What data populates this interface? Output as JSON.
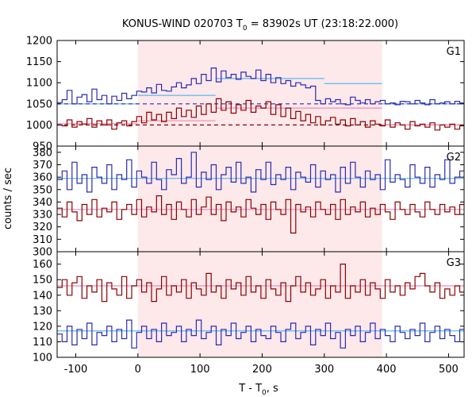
{
  "chart_data": {
    "type": "line",
    "title": "KONUS-WIND 020703 T",
    "title_sub": "0",
    "title_rest": " = 83902s UT (23:18:22.000)",
    "xlabel_main": "T - T",
    "xlabel_sub": "0",
    "xlabel_rest": ", s",
    "ylabel": "counts / sec",
    "xlim": [
      -130,
      525
    ],
    "x_ticks": [
      -100,
      0,
      100,
      200,
      300,
      400,
      500
    ],
    "x_tick_labels": [
      "-100",
      "0",
      "100",
      "200",
      "300",
      "400",
      "500"
    ],
    "shaded_interval": [
      0,
      393
    ],
    "shade_color": "#fde8ea",
    "colors": {
      "blue": "#2b2bb0",
      "red": "#8b0000",
      "lightblue": "#5bb8f0",
      "pink": "#f08ab8"
    },
    "bin_width": 8,
    "panels": [
      {
        "label": "G1",
        "ylim": [
          950,
          1200
        ],
        "y_ticks": [
          950,
          1000,
          1050,
          1100,
          1150,
          1200
        ],
        "y_tick_labels": [
          "950",
          "1000",
          "1050",
          "1100",
          "1150",
          "1200"
        ],
        "series": [
          {
            "color": "blue",
            "values": [
              1053,
              1060,
              1082,
              1050,
              1066,
              1072,
              1055,
              1085,
              1060,
              1070,
              1050,
              1068,
              1058,
              1075,
              1062,
              1070,
              1080,
              1078,
              1088,
              1076,
              1096,
              1082,
              1080,
              1090,
              1100,
              1088,
              1095,
              1110,
              1098,
              1120,
              1105,
              1135,
              1102,
              1128,
              1112,
              1120,
              1108,
              1125,
              1115,
              1110,
              1130,
              1105,
              1120,
              1100,
              1112,
              1098,
              1105,
              1092,
              1100,
              1095,
              1088,
              1092,
              1058,
              1050,
              1062,
              1055,
              1060,
              1050,
              1048,
              1066,
              1058,
              1052,
              1060,
              1050,
              1055,
              1058,
              1050,
              1052,
              1048,
              1056,
              1055,
              1050,
              1058,
              1052,
              1048,
              1060,
              1050,
              1052,
              1055,
              1050,
              1056,
              1052
            ]
          },
          {
            "color": "red",
            "values": [
              1000,
              998,
              1012,
              995,
              1008,
              1002,
              1015,
              995,
              1010,
              1000,
              1012,
              990,
              1005,
              1010,
              998,
              1008,
              1020,
              1005,
              1030,
              1012,
              1025,
              1008,
              1030,
              1015,
              1040,
              1020,
              1035,
              1018,
              1045,
              1025,
              1050,
              1030,
              1062,
              1035,
              1055,
              1028,
              1048,
              1035,
              1058,
              1030,
              1045,
              1040,
              1055,
              1025,
              1048,
              1020,
              1040,
              1015,
              1032,
              1010,
              1025,
              1005,
              1020,
              1000,
              1010,
              1018,
              1002,
              1012,
              998,
              1015,
              1000,
              1008,
              995,
              1010,
              1002,
              998,
              1012,
              995,
              1005,
              1000,
              990,
              1008,
              998,
              1002,
              995,
              1005,
              988,
              1000,
              995,
              1002,
              990,
              998
            ]
          }
        ],
        "bg_lines": [
          {
            "color": "lightblue",
            "y": 1050,
            "style": "solid",
            "x_from": -130,
            "x_to": 0
          },
          {
            "color": "lightblue",
            "y": 1070,
            "style": "solid",
            "x_from": 0,
            "x_to": 125
          },
          {
            "color": "lightblue",
            "y": 1110,
            "style": "solid",
            "x_from": 125,
            "x_to": 300
          },
          {
            "color": "lightblue",
            "y": 1098,
            "style": "solid",
            "x_from": 300,
            "x_to": 393
          },
          {
            "color": "lightblue",
            "y": 1050,
            "style": "solid",
            "x_from": 393,
            "x_to": 525
          },
          {
            "color": "blue",
            "y": 1050,
            "style": "dashed",
            "x_from": -130,
            "x_to": 525
          },
          {
            "color": "red",
            "y": 1000,
            "style": "dashed",
            "x_from": -130,
            "x_to": 525
          },
          {
            "color": "pink",
            "y": 1003,
            "style": "solid",
            "x_from": -130,
            "x_to": 0
          },
          {
            "color": "pink",
            "y": 1010,
            "style": "solid",
            "x_from": 0,
            "x_to": 125
          },
          {
            "color": "pink",
            "y": 1040,
            "style": "solid",
            "x_from": 125,
            "x_to": 393
          },
          {
            "color": "pink",
            "y": 1000,
            "style": "solid",
            "x_from": 393,
            "x_to": 525
          }
        ]
      },
      {
        "label": "G2",
        "ylim": [
          300,
          385
        ],
        "y_ticks": [
          300,
          310,
          320,
          330,
          340,
          350,
          360,
          370,
          380
        ],
        "y_tick_labels": [
          "300",
          "310",
          "320",
          "330",
          "340",
          "350",
          "360",
          "370",
          "380"
        ],
        "series": [
          {
            "color": "blue",
            "values": [
              358,
              365,
              350,
              372,
              355,
              362,
              348,
              368,
              360,
              355,
              370,
              350,
              362,
              358,
              374,
              352,
              365,
              360,
              355,
              372,
              358,
              350,
              366,
              362,
              375,
              355,
              360,
              380,
              352,
              364,
              358,
              370,
              350,
              362,
              368,
              356,
              372,
              355,
              360,
              348,
              366,
              358,
              372,
              354,
              362,
              358,
              368,
              350,
              364,
              360,
              356,
              370,
              352,
              365,
              358,
              362,
              348,
              368,
              355,
              372,
              360,
              352,
              365,
              358,
              362,
              350,
              374,
              356,
              362,
              358,
              352,
              370,
              360,
              355,
              368,
              352,
              362,
              358,
              374,
              355,
              360,
              365
            ]
          },
          {
            "color": "red",
            "values": [
              335,
              328,
              340,
              332,
              325,
              338,
              330,
              342,
              328,
              335,
              332,
              340,
              326,
              334,
              338,
              330,
              342,
              328,
              336,
              332,
              345,
              330,
              338,
              326,
              340,
              334,
              328,
              342,
              330,
              336,
              344,
              330,
              338,
              325,
              340,
              332,
              336,
              328,
              342,
              335,
              330,
              338,
              326,
              340,
              334,
              330,
              342,
              315,
              338,
              332,
              336,
              328,
              340,
              334,
              330,
              338,
              326,
              342,
              330,
              336,
              332,
              340,
              328,
              335,
              330,
              338,
              332,
              326,
              340,
              334,
              330,
              338,
              332,
              328,
              340,
              334,
              330,
              338,
              332,
              336,
              330,
              338
            ]
          }
        ],
        "bg_lines": [
          {
            "color": "lightblue",
            "y": 359,
            "style": "solid",
            "x_from": -130,
            "x_to": 525
          },
          {
            "color": "pink",
            "y": 334,
            "style": "solid",
            "x_from": -130,
            "x_to": 525
          }
        ]
      },
      {
        "label": "G3",
        "ylim": [
          100,
          168
        ],
        "y_ticks": [
          100,
          110,
          120,
          130,
          140,
          150,
          160
        ],
        "y_tick_labels": [
          "100",
          "110",
          "120",
          "130",
          "140",
          "150",
          "160"
        ],
        "series": [
          {
            "color": "red",
            "values": [
              145,
              150,
              140,
              148,
              152,
              138,
              146,
              142,
              150,
              136,
              148,
              144,
              140,
              152,
              138,
              146,
              150,
              142,
              148,
              136,
              144,
              152,
              140,
              146,
              142,
              150,
              138,
              148,
              144,
              140,
              154,
              142,
              146,
              138,
              150,
              144,
              148,
              140,
              152,
              142,
              146,
              138,
              150,
              144,
              140,
              148,
              136,
              146,
              152,
              142,
              148,
              140,
              144,
              150,
              138,
              146,
              142,
              160,
              138,
              146,
              142,
              150,
              140,
              148,
              144,
              138,
              150,
              142,
              146,
              140,
              148,
              144,
              152,
              154,
              146,
              142,
              148,
              138,
              144,
              140,
              146,
              142
            ]
          },
          {
            "color": "blue",
            "values": [
              115,
              110,
              120,
              108,
              118,
              112,
              122,
              108,
              116,
              114,
              120,
              110,
              118,
              112,
              124,
              106,
              116,
              120,
              112,
              118,
              110,
              122,
              114,
              116,
              120,
              110,
              118,
              114,
              124,
              112,
              116,
              120,
              108,
              118,
              114,
              122,
              112,
              116,
              120,
              110,
              118,
              114,
              112,
              120,
              116,
              110,
              118,
              122,
              112,
              116,
              120,
              108,
              118,
              114,
              122,
              112,
              116,
              106,
              118,
              114,
              120,
              110,
              116,
              122,
              112,
              118,
              114,
              110,
              120,
              116,
              112,
              118,
              114,
              122,
              110,
              116,
              120,
              112,
              118,
              114,
              110,
              118
            ]
          }
        ],
        "bg_lines": [
          {
            "color": "pink",
            "y": 146,
            "style": "solid",
            "x_from": -130,
            "x_to": 525
          },
          {
            "color": "lightblue",
            "y": 117,
            "style": "solid",
            "x_from": -130,
            "x_to": 525
          }
        ]
      }
    ]
  }
}
